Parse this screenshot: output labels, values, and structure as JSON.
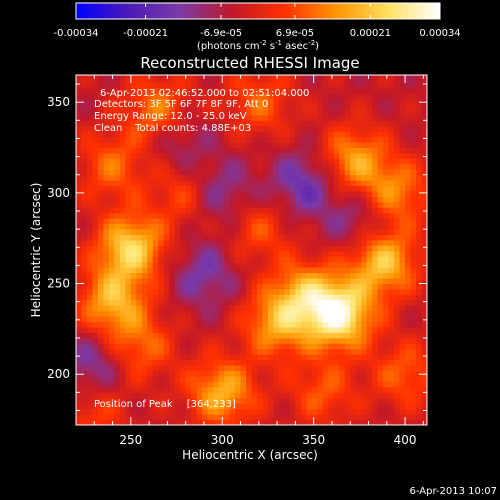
{
  "chart_data": {
    "type": "heatmap",
    "title": "Reconstructed RHESSI Image",
    "xlabel": "Heliocentric X (arcsec)",
    "ylabel": "Heliocentric Y (arcsec)",
    "xlim": [
      220,
      412
    ],
    "ylim": [
      172,
      365
    ],
    "x_ticks": [
      250,
      300,
      350,
      400
    ],
    "y_ticks": [
      200,
      250,
      300,
      350
    ],
    "colorbar": {
      "tick_labels": [
        "-0.00034",
        "-0.00021",
        "-6.9e-05",
        "6.9e-05",
        "0.00021",
        "0.00034"
      ],
      "range": [
        -0.00034,
        0.00034
      ],
      "unit_label_parts": [
        "(photons cm",
        "-2",
        " s",
        "-1",
        " asec",
        "-2",
        ")"
      ]
    },
    "annotations": [
      "6-Apr-2013 02:46:52.000 to 02:51:04.000",
      "Detectors: 3F 5F 6F 7F 8F 9F, Att 0",
      "Energy Range: 12.0 - 25.0 keV",
      "Clean    Total counts: 4.88E+03"
    ],
    "peak": {
      "label": "Position of Peak",
      "value": "[364,233]"
    },
    "hotspots": [
      {
        "x": 364,
        "y": 233,
        "value": 0.00034
      },
      {
        "x": 250,
        "y": 270,
        "value": 0.00027
      },
      {
        "x": 240,
        "y": 240,
        "value": 0.00022
      },
      {
        "x": 300,
        "y": 190,
        "value": 0.00022
      },
      {
        "x": 388,
        "y": 262,
        "value": 0.00025
      },
      {
        "x": 330,
        "y": 228,
        "value": 0.0002
      },
      {
        "x": 372,
        "y": 318,
        "value": 0.0002
      },
      {
        "x": 395,
        "y": 300,
        "value": 0.00017
      },
      {
        "x": 265,
        "y": 345,
        "value": 0.00018
      },
      {
        "x": 240,
        "y": 315,
        "value": 0.00014
      },
      {
        "x": 280,
        "y": 300,
        "value": 0.00012
      },
      {
        "x": 345,
        "y": 245,
        "value": 0.00018
      },
      {
        "x": 320,
        "y": 350,
        "value": 0.00013
      },
      {
        "x": 255,
        "y": 215,
        "value": 0.00014
      },
      {
        "x": 355,
        "y": 190,
        "value": 0.00012
      },
      {
        "x": 400,
        "y": 200,
        "value": 0.00013
      },
      {
        "x": 230,
        "y": 180,
        "value": 0.0001
      },
      {
        "x": 320,
        "y": 280,
        "value": 0.00011
      }
    ],
    "coldspots": [
      {
        "x": 298,
        "y": 300,
        "value": -0.00012
      },
      {
        "x": 345,
        "y": 305,
        "value": -0.00014
      },
      {
        "x": 290,
        "y": 255,
        "value": -0.00011
      },
      {
        "x": 230,
        "y": 205,
        "value": -0.00012
      },
      {
        "x": 375,
        "y": 285,
        "value": -0.0001
      },
      {
        "x": 275,
        "y": 330,
        "value": -0.0001
      }
    ]
  },
  "timestamp": "6-Apr-2013 10:07",
  "colormap": [
    "#0000ff",
    "#4b1bb8",
    "#7a3aa8",
    "#c0182a",
    "#ff3000",
    "#ff9400",
    "#ffe060",
    "#ffffff"
  ]
}
